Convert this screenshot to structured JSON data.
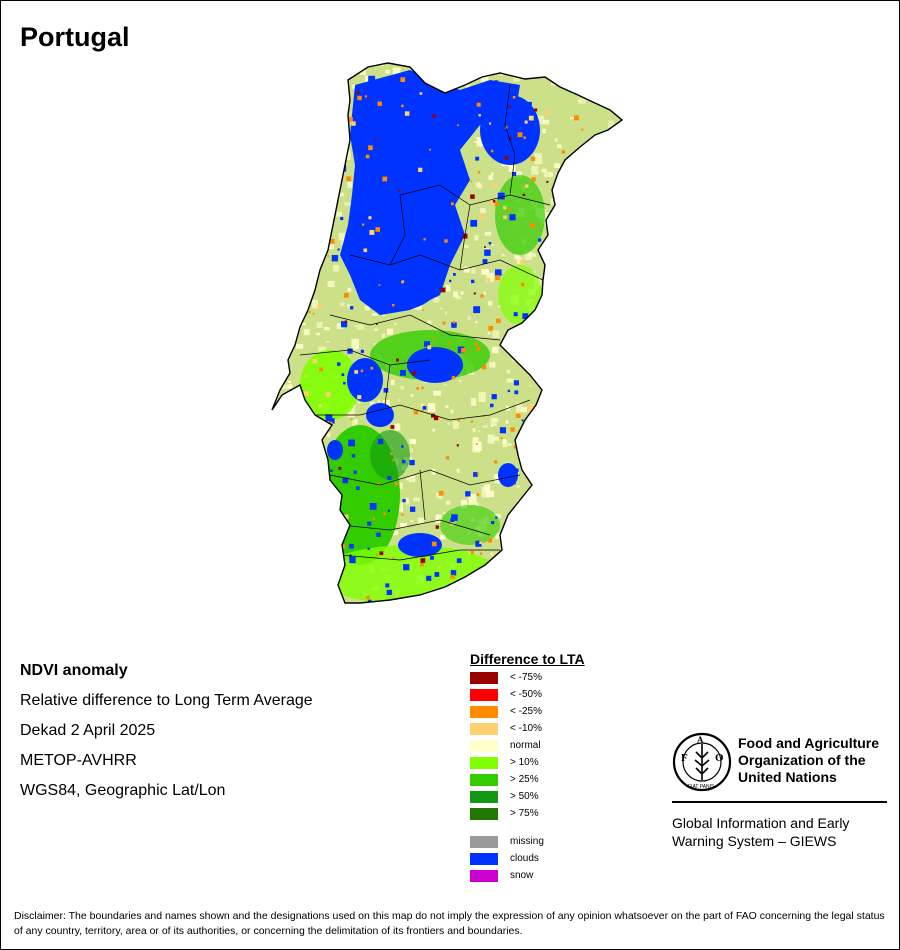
{
  "map_title": "Portugal",
  "info": {
    "heading": "NDVI anomaly",
    "lines": [
      "Relative difference to Long Term Average",
      "Dekad 2 April 2025",
      "METOP-AVHRR",
      "WGS84, Geographic Lat/Lon"
    ]
  },
  "legend": {
    "title": "Difference to LTA",
    "items": [
      {
        "label": "< -75%",
        "color": "#990000"
      },
      {
        "label": "< -50%",
        "color": "#ff0000"
      },
      {
        "label": "< -25%",
        "color": "#ff8c00"
      },
      {
        "label": "< -10%",
        "color": "#ffd070"
      },
      {
        "label": "normal",
        "color": "#ffffcc"
      },
      {
        "label": "> 10%",
        "color": "#80ff00"
      },
      {
        "label": "> 25%",
        "color": "#33cc00"
      },
      {
        "label": "> 50%",
        "color": "#119911"
      },
      {
        "label": "> 75%",
        "color": "#227700"
      }
    ],
    "extra_items": [
      {
        "label": "missing",
        "color": "#999999"
      },
      {
        "label": "clouds",
        "color": "#0033ff"
      },
      {
        "label": "snow",
        "color": "#cc00cc"
      }
    ]
  },
  "organization": {
    "logo_icon": "fao-logo-icon",
    "logo_letters": "FAO",
    "logo_motto": "FIAT PANIS",
    "name_lines": [
      "Food and Agriculture",
      "Organization of the",
      "United Nations"
    ],
    "system_lines": [
      "Global Information and Early",
      "Warning System – GIEWS"
    ]
  },
  "disclaimer": "Disclaimer: The boundaries and names shown and the designations used on this map do not imply the expression of any opinion whatsoever on the part of FAO concerning the legal status of any country, territory, area or of its authorities, or concerning the delimitation of its frontiers and boundaries."
}
